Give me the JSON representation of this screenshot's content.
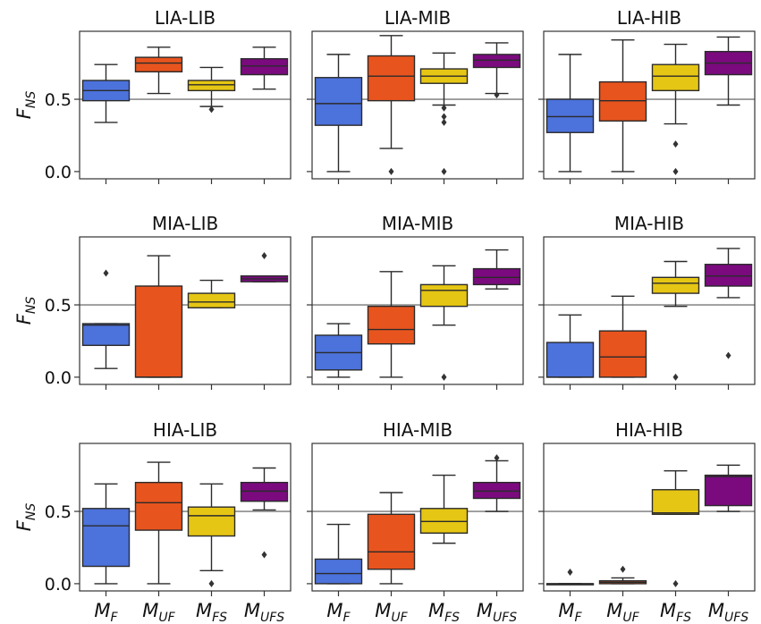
{
  "chart_data": {
    "type": "box",
    "ylabel": "F",
    "ylabel_sub": "NS",
    "yticks": [
      "0.0",
      "0.5"
    ],
    "ytick_values": [
      0.0,
      0.5
    ],
    "ylim": [
      -0.05,
      0.97
    ],
    "reference_line": 0.5,
    "categories": [
      {
        "main": "M",
        "sub": "F"
      },
      {
        "main": "M",
        "sub": "UF"
      },
      {
        "main": "M",
        "sub": "FS"
      },
      {
        "main": "M",
        "sub": "UFS"
      }
    ],
    "colors": [
      "#4c72db",
      "#e8541e",
      "#e6c614",
      "#7a0a7e"
    ],
    "panels": [
      {
        "title": "LIA-LIB",
        "boxes": [
          {
            "q1": 0.49,
            "median": 0.56,
            "q3": 0.63,
            "whislo": 0.34,
            "whishi": 0.74,
            "fliers": []
          },
          {
            "q1": 0.69,
            "median": 0.75,
            "q3": 0.79,
            "whislo": 0.54,
            "whishi": 0.86,
            "fliers": []
          },
          {
            "q1": 0.56,
            "median": 0.6,
            "q3": 0.63,
            "whislo": 0.45,
            "whishi": 0.72,
            "fliers": [
              0.43
            ]
          },
          {
            "q1": 0.67,
            "median": 0.73,
            "q3": 0.78,
            "whislo": 0.57,
            "whishi": 0.86,
            "fliers": []
          }
        ]
      },
      {
        "title": "LIA-MIB",
        "boxes": [
          {
            "q1": 0.32,
            "median": 0.47,
            "q3": 0.65,
            "whislo": 0.0,
            "whishi": 0.81,
            "fliers": []
          },
          {
            "q1": 0.49,
            "median": 0.66,
            "q3": 0.8,
            "whislo": 0.16,
            "whishi": 0.94,
            "fliers": [
              0.0
            ]
          },
          {
            "q1": 0.61,
            "median": 0.66,
            "q3": 0.71,
            "whislo": 0.46,
            "whishi": 0.82,
            "fliers": [
              0.44,
              0.38,
              0.34,
              0.0
            ]
          },
          {
            "q1": 0.72,
            "median": 0.77,
            "q3": 0.81,
            "whislo": 0.54,
            "whishi": 0.89,
            "fliers": [
              0.53
            ]
          }
        ]
      },
      {
        "title": "LIA-HIB",
        "boxes": [
          {
            "q1": 0.27,
            "median": 0.38,
            "q3": 0.5,
            "whislo": 0.0,
            "whishi": 0.81,
            "fliers": []
          },
          {
            "q1": 0.35,
            "median": 0.49,
            "q3": 0.62,
            "whislo": 0.0,
            "whishi": 0.91,
            "fliers": []
          },
          {
            "q1": 0.56,
            "median": 0.66,
            "q3": 0.74,
            "whislo": 0.33,
            "whishi": 0.88,
            "fliers": [
              0.19,
              0.0
            ]
          },
          {
            "q1": 0.67,
            "median": 0.75,
            "q3": 0.83,
            "whislo": 0.46,
            "whishi": 0.93,
            "fliers": []
          }
        ]
      },
      {
        "title": "MIA-LIB",
        "boxes": [
          {
            "q1": 0.22,
            "median": 0.36,
            "q3": 0.37,
            "whislo": 0.06,
            "whishi": 0.37,
            "fliers": [
              0.72
            ]
          },
          {
            "q1": 0.0,
            "median": 0.0,
            "q3": 0.63,
            "whislo": 0.0,
            "whishi": 0.84,
            "fliers": []
          },
          {
            "q1": 0.48,
            "median": 0.52,
            "q3": 0.58,
            "whislo": 0.48,
            "whishi": 0.67,
            "fliers": []
          },
          {
            "q1": 0.66,
            "median": 0.68,
            "q3": 0.7,
            "whislo": 0.66,
            "whishi": 0.7,
            "fliers": [
              0.84
            ]
          }
        ]
      },
      {
        "title": "MIA-MIB",
        "boxes": [
          {
            "q1": 0.05,
            "median": 0.17,
            "q3": 0.29,
            "whislo": 0.0,
            "whishi": 0.37,
            "fliers": []
          },
          {
            "q1": 0.23,
            "median": 0.33,
            "q3": 0.49,
            "whislo": 0.0,
            "whishi": 0.73,
            "fliers": []
          },
          {
            "q1": 0.49,
            "median": 0.6,
            "q3": 0.64,
            "whislo": 0.36,
            "whishi": 0.77,
            "fliers": [
              0.0
            ]
          },
          {
            "q1": 0.64,
            "median": 0.69,
            "q3": 0.75,
            "whislo": 0.61,
            "whishi": 0.88,
            "fliers": []
          }
        ]
      },
      {
        "title": "MIA-HIB",
        "boxes": [
          {
            "q1": 0.0,
            "median": 0.0,
            "q3": 0.24,
            "whislo": 0.0,
            "whishi": 0.43,
            "fliers": []
          },
          {
            "q1": 0.0,
            "median": 0.14,
            "q3": 0.32,
            "whislo": 0.0,
            "whishi": 0.56,
            "fliers": []
          },
          {
            "q1": 0.58,
            "median": 0.65,
            "q3": 0.69,
            "whislo": 0.49,
            "whishi": 0.8,
            "fliers": [
              0.0
            ]
          },
          {
            "q1": 0.63,
            "median": 0.7,
            "q3": 0.78,
            "whislo": 0.55,
            "whishi": 0.89,
            "fliers": [
              0.15
            ]
          }
        ]
      },
      {
        "title": "HIA-LIB",
        "boxes": [
          {
            "q1": 0.12,
            "median": 0.4,
            "q3": 0.52,
            "whislo": 0.0,
            "whishi": 0.69,
            "fliers": []
          },
          {
            "q1": 0.37,
            "median": 0.56,
            "q3": 0.7,
            "whislo": 0.0,
            "whishi": 0.84,
            "fliers": []
          },
          {
            "q1": 0.33,
            "median": 0.47,
            "q3": 0.53,
            "whislo": 0.09,
            "whishi": 0.69,
            "fliers": [
              0.0
            ]
          },
          {
            "q1": 0.57,
            "median": 0.64,
            "q3": 0.7,
            "whislo": 0.51,
            "whishi": 0.8,
            "fliers": [
              0.2
            ]
          }
        ]
      },
      {
        "title": "HIA-MIB",
        "boxes": [
          {
            "q1": 0.0,
            "median": 0.07,
            "q3": 0.17,
            "whislo": 0.0,
            "whishi": 0.41,
            "fliers": []
          },
          {
            "q1": 0.1,
            "median": 0.22,
            "q3": 0.48,
            "whislo": 0.0,
            "whishi": 0.63,
            "fliers": []
          },
          {
            "q1": 0.35,
            "median": 0.43,
            "q3": 0.52,
            "whislo": 0.28,
            "whishi": 0.75,
            "fliers": []
          },
          {
            "q1": 0.59,
            "median": 0.64,
            "q3": 0.7,
            "whislo": 0.5,
            "whishi": 0.85,
            "fliers": [
              0.87
            ]
          }
        ]
      },
      {
        "title": "HIA-HIB",
        "boxes": [
          {
            "q1": 0.0,
            "median": 0.0,
            "q3": 0.0,
            "whislo": 0.0,
            "whishi": 0.0,
            "fliers": [
              0.08
            ]
          },
          {
            "q1": 0.0,
            "median": 0.01,
            "q3": 0.02,
            "whislo": 0.0,
            "whishi": 0.04,
            "fliers": [
              0.1
            ]
          },
          {
            "q1": 0.48,
            "median": 0.49,
            "q3": 0.65,
            "whislo": 0.48,
            "whishi": 0.78,
            "fliers": [
              0.0
            ]
          },
          {
            "q1": 0.54,
            "median": 0.74,
            "q3": 0.75,
            "whislo": 0.5,
            "whishi": 0.82,
            "fliers": []
          }
        ]
      }
    ]
  }
}
